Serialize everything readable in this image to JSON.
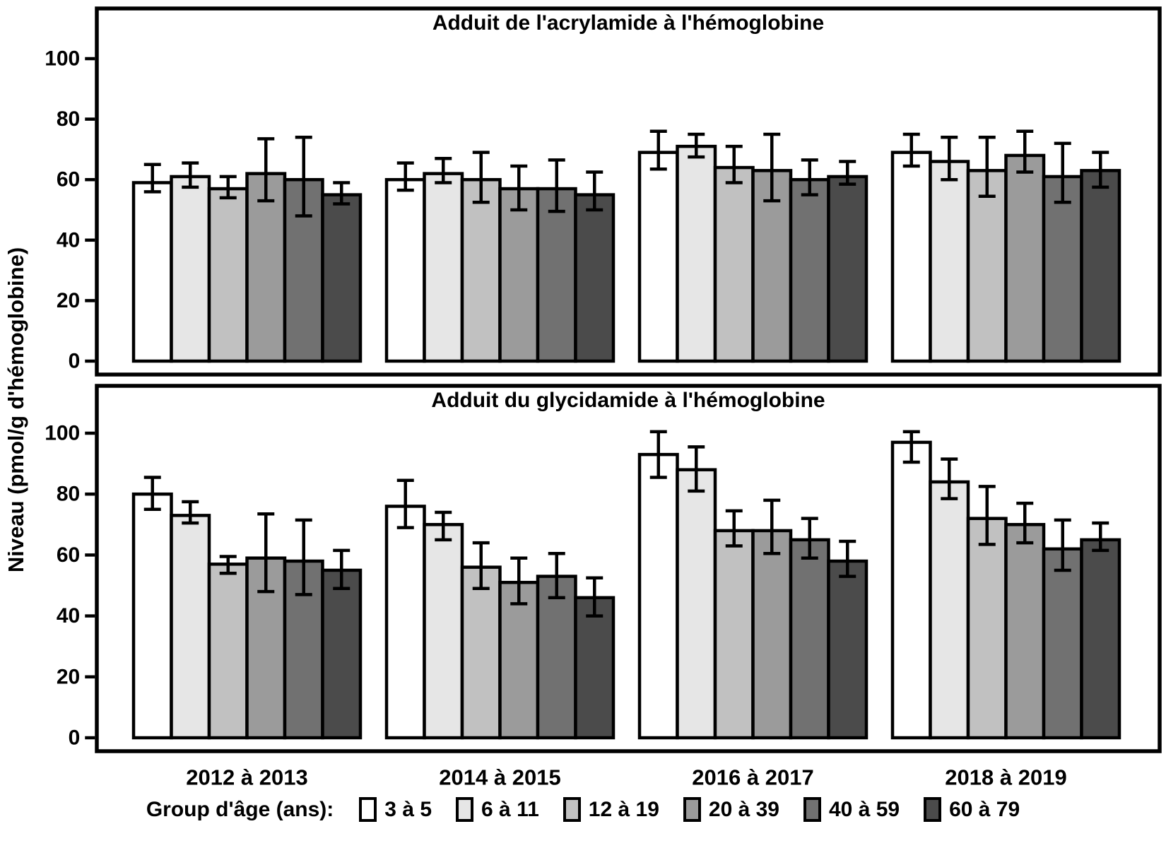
{
  "y_axis": {
    "label": "Niveau (pmol/g d'hémoglobine)",
    "ticks": [
      0,
      20,
      40,
      60,
      80,
      100
    ]
  },
  "x_categories": [
    "2012 à 2013",
    "2014 à 2015",
    "2016 à 2017",
    "2018 à 2019"
  ],
  "legend": {
    "title": "Group d'âge (ans):",
    "items": [
      {
        "label": "3 à 5",
        "color": "#FFFFFF"
      },
      {
        "label": "6 à 11",
        "color": "#E6E6E6"
      },
      {
        "label": "12 à 19",
        "color": "#C1C1C1"
      },
      {
        "label": "20 à 39",
        "color": "#9B9B9B"
      },
      {
        "label": "40 à 59",
        "color": "#717171"
      },
      {
        "label": "60 à 79",
        "color": "#4B4B4B"
      }
    ]
  },
  "chart_data": [
    {
      "type": "bar",
      "title": "Adduit de l'acrylamide à l'hémoglobine",
      "categories": [
        "2012 à 2013",
        "2014 à 2015",
        "2016 à 2017",
        "2018 à 2019"
      ],
      "ylabel": "Niveau (pmol/g d'hémoglobine)",
      "ylim": [
        0,
        117
      ],
      "yticks": [
        0,
        20,
        40,
        60,
        80,
        100
      ],
      "grid": false,
      "series": [
        {
          "name": "3 à 5",
          "color": "#FFFFFF",
          "values": [
            59,
            60,
            69,
            69
          ],
          "err_lo": [
            56,
            56.5,
            63.5,
            64.5
          ],
          "err_hi": [
            65,
            65.5,
            76,
            75
          ]
        },
        {
          "name": "6 à 11",
          "color": "#E6E6E6",
          "values": [
            61,
            62,
            71,
            66
          ],
          "err_lo": [
            57.5,
            59,
            67.5,
            60
          ],
          "err_hi": [
            65.5,
            67,
            75,
            74
          ]
        },
        {
          "name": "12 à 19",
          "color": "#C1C1C1",
          "values": [
            57,
            60,
            64,
            63
          ],
          "err_lo": [
            54,
            52.5,
            59,
            54.5
          ],
          "err_hi": [
            61,
            69,
            71,
            74
          ]
        },
        {
          "name": "20 à 39",
          "color": "#9B9B9B",
          "values": [
            62,
            57,
            63,
            68
          ],
          "err_lo": [
            53,
            50,
            53,
            62.5
          ],
          "err_hi": [
            73.5,
            64.5,
            75,
            76
          ]
        },
        {
          "name": "40 à 59",
          "color": "#717171",
          "values": [
            60,
            57,
            60,
            61
          ],
          "err_lo": [
            48,
            49.5,
            55,
            52.5
          ],
          "err_hi": [
            74,
            66.5,
            66.5,
            72
          ]
        },
        {
          "name": "60 à 79",
          "color": "#4B4B4B",
          "values": [
            55,
            55,
            61,
            63
          ],
          "err_lo": [
            52,
            50,
            58.5,
            57.5
          ],
          "err_hi": [
            59,
            62.5,
            66,
            69
          ]
        }
      ]
    },
    {
      "type": "bar",
      "title": "Adduit du glycidamide à l'hémoglobine",
      "categories": [
        "2012 à 2013",
        "2014 à 2015",
        "2016 à 2017",
        "2018 à 2019"
      ],
      "ylabel": "Niveau (pmol/g d'hémoglobine)",
      "ylim": [
        0,
        116
      ],
      "yticks": [
        0,
        20,
        40,
        60,
        80,
        100
      ],
      "grid": false,
      "series": [
        {
          "name": "3 à 5",
          "color": "#FFFFFF",
          "values": [
            80,
            76,
            93,
            97
          ],
          "err_lo": [
            75,
            69,
            85.5,
            90.5
          ],
          "err_hi": [
            85.5,
            84.5,
            100.5,
            100.5
          ]
        },
        {
          "name": "6 à 11",
          "color": "#E6E6E6",
          "values": [
            73,
            70,
            88,
            84
          ],
          "err_lo": [
            70.5,
            65,
            81,
            78.5
          ],
          "err_hi": [
            77.5,
            74,
            95.5,
            91.5
          ]
        },
        {
          "name": "12 à 19",
          "color": "#C1C1C1",
          "values": [
            57,
            56,
            68,
            72
          ],
          "err_lo": [
            54,
            49,
            63,
            63.5
          ],
          "err_hi": [
            59.5,
            64,
            74.5,
            82.5
          ]
        },
        {
          "name": "20 à 39",
          "color": "#9B9B9B",
          "values": [
            59,
            51,
            68,
            70
          ],
          "err_lo": [
            48,
            44,
            60.5,
            64
          ],
          "err_hi": [
            73.5,
            59,
            78,
            77
          ]
        },
        {
          "name": "40 à 59",
          "color": "#717171",
          "values": [
            58,
            53,
            65,
            62
          ],
          "err_lo": [
            47,
            46,
            59,
            55
          ],
          "err_hi": [
            71.5,
            60.5,
            72,
            71.5
          ]
        },
        {
          "name": "60 à 79",
          "color": "#4B4B4B",
          "values": [
            55,
            46,
            58,
            65
          ],
          "err_lo": [
            49,
            40,
            53,
            61.5
          ],
          "err_hi": [
            61.5,
            52.5,
            64.5,
            70.5
          ]
        }
      ]
    }
  ]
}
